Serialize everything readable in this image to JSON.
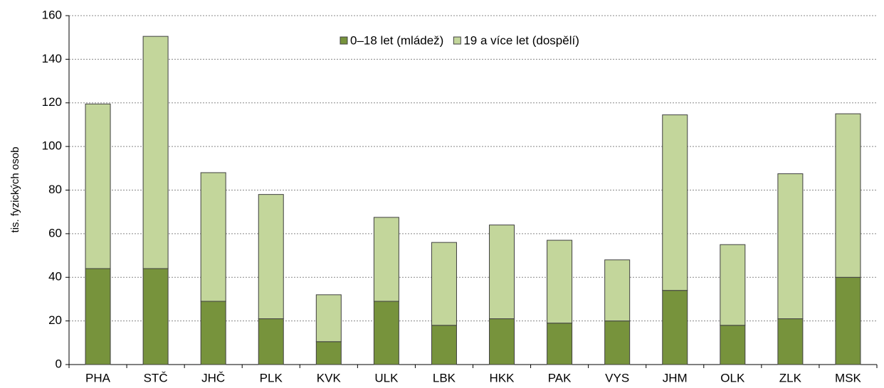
{
  "chart_data": {
    "type": "stacked_bar",
    "y_label": "tis. fyzických osob",
    "categories": [
      "PHA",
      "STČ",
      "JHČ",
      "PLK",
      "KVK",
      "ULK",
      "LBK",
      "HKK",
      "PAK",
      "VYS",
      "JHM",
      "OLK",
      "ZLK",
      "MSK"
    ],
    "series": [
      {
        "name": "0–18 let (mládež)",
        "color": "#77933c",
        "values": [
          44,
          44,
          29,
          21,
          10.5,
          29,
          18,
          21,
          19,
          20,
          34,
          18,
          21,
          40
        ]
      },
      {
        "name": "19 a více let (dospělí)",
        "color": "#c3d69b",
        "values": [
          75.5,
          106.5,
          59,
          57,
          21.5,
          38.5,
          38,
          43,
          38,
          28,
          80.5,
          37,
          66.5,
          75
        ]
      }
    ],
    "ylim": [
      0,
      160
    ],
    "yticks": [
      0,
      20,
      40,
      60,
      80,
      100,
      120,
      140,
      160
    ],
    "grid": true
  }
}
